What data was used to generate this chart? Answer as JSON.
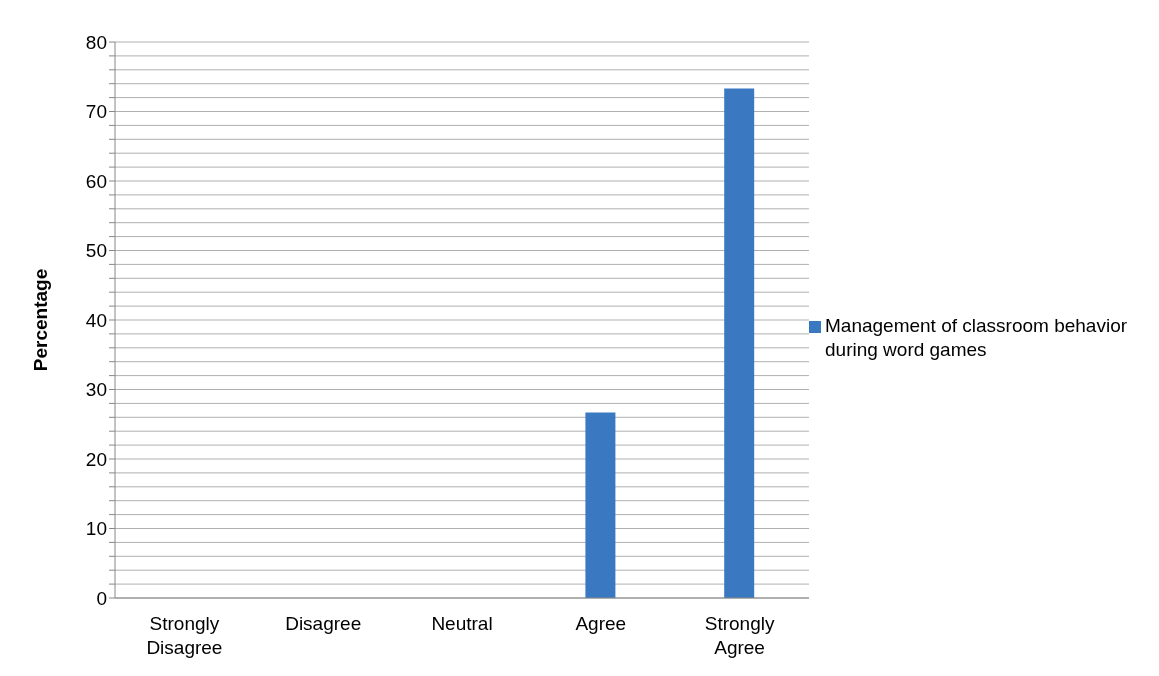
{
  "chart_data": {
    "type": "bar",
    "ylabel": "Percentage",
    "categories": [
      "Strongly Disagree",
      "Disagree",
      "Neutral",
      "Agree",
      "Strongly Agree"
    ],
    "series": [
      {
        "name": "Management of classroom behavior during word games",
        "color": "#3b78c2",
        "values": [
          0,
          0,
          0,
          26.7,
          73.3
        ]
      }
    ],
    "ylim": [
      0,
      80
    ],
    "yticks": [
      0,
      {
        "value": 2,
        "label": null
      },
      {
        "value": 4,
        "label": null
      },
      {
        "value": 6,
        "label": null
      },
      {
        "value": 8,
        "label": null
      },
      10,
      {
        "value": 12,
        "label": null
      },
      {
        "value": 14,
        "label": null
      },
      {
        "value": 16,
        "label": null
      },
      {
        "value": 18,
        "label": null
      },
      20,
      {
        "value": 22,
        "label": null
      },
      {
        "value": 24,
        "label": null
      },
      {
        "value": 26,
        "label": null
      },
      {
        "value": 28,
        "label": null
      },
      30,
      {
        "value": 32,
        "label": null
      },
      {
        "value": 34,
        "label": null
      },
      {
        "value": 36,
        "label": null
      },
      {
        "value": 38,
        "label": null
      },
      40,
      {
        "value": 42,
        "label": null
      },
      {
        "value": 44,
        "label": null
      },
      {
        "value": 46,
        "label": null
      },
      {
        "value": 48,
        "label": null
      },
      50,
      {
        "value": 52,
        "label": null
      },
      {
        "value": 54,
        "label": null
      },
      {
        "value": 56,
        "label": null
      },
      {
        "value": 58,
        "label": null
      },
      60,
      {
        "value": 62,
        "label": null
      },
      {
        "value": 64,
        "label": null
      },
      {
        "value": 66,
        "label": null
      },
      {
        "value": 68,
        "label": null
      },
      70,
      {
        "value": 72,
        "label": null
      },
      {
        "value": 74,
        "label": null
      },
      {
        "value": 76,
        "label": null
      },
      {
        "value": 78,
        "label": null
      },
      80
    ],
    "grid": "y",
    "legend": "right"
  }
}
